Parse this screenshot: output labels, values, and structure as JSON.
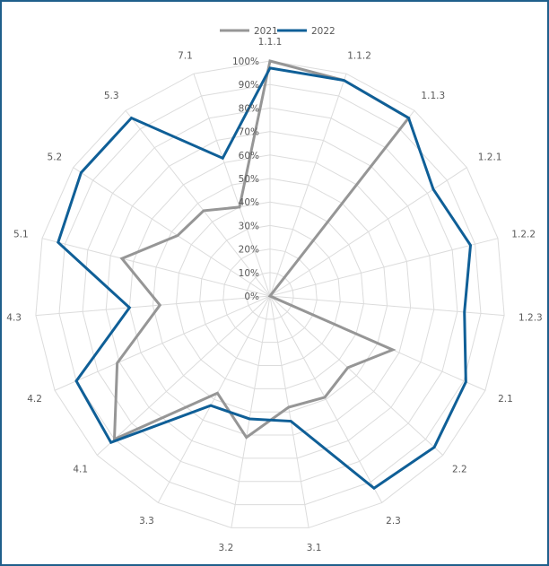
{
  "chart_data": {
    "type": "radar",
    "title": "",
    "categories": [
      "1.1.1",
      "1.1.2",
      "1.1.3",
      "1.2.1",
      "1.2.2",
      "1.2.3",
      "2.1",
      "2.2",
      "2.3",
      "3.1",
      "3.2",
      "3.3",
      "4.1",
      "4.2",
      "4.3",
      "5.1",
      "5.2",
      "5.3",
      "7.1"
    ],
    "series": [
      {
        "name": "2021",
        "color": "#969696",
        "values": [
          100,
          97,
          96,
          0,
          0,
          0,
          57,
          45,
          49,
          48,
          61,
          47,
          90,
          71,
          47,
          65,
          47,
          46,
          40
        ]
      },
      {
        "name": "2022",
        "color": "#0f5f97",
        "values": [
          97,
          97,
          96,
          83,
          88,
          83,
          91,
          95,
          93,
          54,
          53,
          53,
          92,
          90,
          60,
          93,
          96,
          96,
          62
        ]
      }
    ],
    "rlim": [
      0,
      100
    ],
    "ticks": [
      "0%",
      "10%",
      "20%",
      "30%",
      "40%",
      "50%",
      "60%",
      "70%",
      "80%",
      "90%",
      "100%"
    ],
    "legend": "top",
    "grid": true
  }
}
